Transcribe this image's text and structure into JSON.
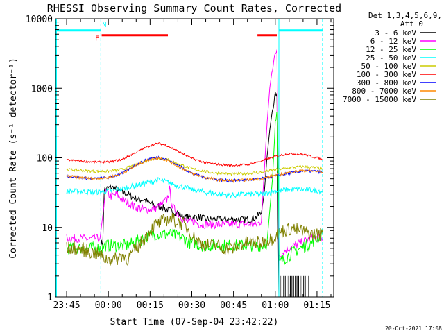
{
  "chart_data": {
    "type": "line",
    "title": "RHESSI Observing Summary Count Rates, Corrected",
    "xlabel": "Start Time (07-Sep-04 23:42:22)",
    "ylabel": "Corrected Count Rate (s⁻¹ detector⁻¹)",
    "yscale": "log",
    "ylim": [
      1,
      10000
    ],
    "xlim_minutes_from_start": [
      -4,
      96
    ],
    "x_units": "minutes after 07-Sep-04 23:42:22",
    "y_ticks": [
      {
        "value": 1,
        "label": "1"
      },
      {
        "value": 10,
        "label": "10"
      },
      {
        "value": 100,
        "label": "100"
      },
      {
        "value": 1000,
        "label": "1000"
      },
      {
        "value": 10000,
        "label": "10000"
      }
    ],
    "x_ticks": [
      {
        "value": 0,
        "label": "23:45"
      },
      {
        "value": 15,
        "label": "00:00"
      },
      {
        "value": 30,
        "label": "00:15"
      },
      {
        "value": 45,
        "label": "00:30"
      },
      {
        "value": 60,
        "label": "00:45"
      },
      {
        "value": 75,
        "label": "01:00"
      },
      {
        "value": 90,
        "label": "01:15"
      }
    ],
    "legend_header": [
      "Det 1,3,4,5,6,9,",
      "Att 0"
    ],
    "legend_position": "right",
    "series": [
      {
        "name": "3 - 6 keV",
        "color": "#000000",
        "points": [
          [
            12.3,
            6
          ],
          [
            13,
            6
          ],
          [
            13.5,
            35
          ],
          [
            16,
            38
          ],
          [
            18,
            35
          ],
          [
            20,
            32
          ],
          [
            22,
            30
          ],
          [
            24,
            27
          ],
          [
            26,
            25
          ],
          [
            28,
            25
          ],
          [
            30,
            22
          ],
          [
            32,
            20
          ],
          [
            34,
            20
          ],
          [
            36,
            18
          ],
          [
            38,
            17
          ],
          [
            40,
            16
          ],
          [
            42,
            14
          ],
          [
            44,
            14
          ],
          [
            46,
            14
          ],
          [
            48,
            14
          ],
          [
            50,
            13
          ],
          [
            52,
            13
          ],
          [
            54,
            13
          ],
          [
            56,
            13
          ],
          [
            58,
            13
          ],
          [
            60,
            13
          ],
          [
            62,
            13
          ],
          [
            64,
            13
          ],
          [
            66,
            13
          ],
          [
            68,
            14
          ],
          [
            70,
            16
          ],
          [
            71,
            30
          ],
          [
            72,
            100
          ],
          [
            73,
            250
          ],
          [
            74,
            500
          ],
          [
            75,
            800
          ],
          [
            75.6,
            850
          ],
          [
            76.3,
            1
          ]
        ]
      },
      {
        "name": "6 - 12 keV",
        "color": "#ff00ff",
        "points": [
          [
            0,
            7
          ],
          [
            4,
            7
          ],
          [
            8,
            6.8
          ],
          [
            12,
            7
          ],
          [
            14,
            32
          ],
          [
            16,
            28
          ],
          [
            18,
            30
          ],
          [
            20,
            25
          ],
          [
            22,
            23
          ],
          [
            24,
            20
          ],
          [
            26,
            19
          ],
          [
            28,
            18
          ],
          [
            30,
            18
          ],
          [
            32,
            19
          ],
          [
            34,
            21
          ],
          [
            36,
            25
          ],
          [
            37,
            35
          ],
          [
            38,
            20
          ],
          [
            40,
            16
          ],
          [
            42,
            13
          ],
          [
            44,
            12
          ],
          [
            46,
            12
          ],
          [
            48,
            11
          ],
          [
            50,
            11
          ],
          [
            52,
            11
          ],
          [
            54,
            11
          ],
          [
            56,
            11
          ],
          [
            58,
            11
          ],
          [
            60,
            11
          ],
          [
            62,
            11
          ],
          [
            64,
            11
          ],
          [
            66,
            11
          ],
          [
            68,
            11
          ],
          [
            70,
            12
          ],
          [
            71,
            60
          ],
          [
            72,
            300
          ],
          [
            73,
            1000
          ],
          [
            74,
            2000
          ],
          [
            75,
            3000
          ],
          [
            75.6,
            3600
          ],
          [
            76.3,
            4
          ],
          [
            78,
            4.5
          ],
          [
            80,
            5
          ],
          [
            82,
            5.5
          ],
          [
            84,
            6
          ],
          [
            86,
            6.5
          ],
          [
            88,
            7
          ],
          [
            90,
            7
          ],
          [
            92,
            7
          ]
        ]
      },
      {
        "name": "12 - 25 keV",
        "color": "#00ff00",
        "points": [
          [
            0,
            5
          ],
          [
            4,
            5
          ],
          [
            8,
            5
          ],
          [
            12,
            5
          ],
          [
            14,
            5.5
          ],
          [
            16,
            5.5
          ],
          [
            18,
            5.5
          ],
          [
            20,
            5.5
          ],
          [
            22,
            5.5
          ],
          [
            24,
            6
          ],
          [
            26,
            6.5
          ],
          [
            28,
            7
          ],
          [
            30,
            7.5
          ],
          [
            32,
            8
          ],
          [
            34,
            8
          ],
          [
            36,
            8
          ],
          [
            38,
            8
          ],
          [
            40,
            7.5
          ],
          [
            42,
            7
          ],
          [
            44,
            6
          ],
          [
            46,
            6
          ],
          [
            48,
            5.5
          ],
          [
            50,
            5.5
          ],
          [
            52,
            5.5
          ],
          [
            54,
            5.5
          ],
          [
            56,
            5.5
          ],
          [
            58,
            5.5
          ],
          [
            60,
            5.5
          ],
          [
            62,
            5.5
          ],
          [
            64,
            5.5
          ],
          [
            66,
            5.5
          ],
          [
            68,
            5.5
          ],
          [
            70,
            5.5
          ],
          [
            72,
            6
          ],
          [
            74,
            50
          ],
          [
            75,
            300
          ],
          [
            75.8,
            450
          ],
          [
            76.4,
            3
          ],
          [
            78,
            3.5
          ],
          [
            80,
            4
          ],
          [
            82,
            4.5
          ],
          [
            84,
            5
          ],
          [
            86,
            5.5
          ],
          [
            88,
            6
          ],
          [
            90,
            7
          ],
          [
            92,
            8
          ]
        ]
      },
      {
        "name": "25 - 50 keV",
        "color": "#00ffff",
        "points": [
          [
            0,
            33
          ],
          [
            5,
            33
          ],
          [
            10,
            32
          ],
          [
            15,
            33
          ],
          [
            20,
            36
          ],
          [
            25,
            40
          ],
          [
            30,
            45
          ],
          [
            33,
            48
          ],
          [
            36,
            45
          ],
          [
            40,
            40
          ],
          [
            45,
            35
          ],
          [
            50,
            32
          ],
          [
            55,
            30
          ],
          [
            60,
            29
          ],
          [
            65,
            30
          ],
          [
            70,
            30
          ],
          [
            75,
            33
          ],
          [
            80,
            35
          ],
          [
            85,
            35
          ],
          [
            90,
            34
          ],
          [
            92,
            33
          ]
        ]
      },
      {
        "name": "50 - 100 keV",
        "color": "#cccc00",
        "points": [
          [
            0,
            68
          ],
          [
            5,
            66
          ],
          [
            10,
            64
          ],
          [
            15,
            64
          ],
          [
            20,
            68
          ],
          [
            25,
            80
          ],
          [
            30,
            95
          ],
          [
            33,
            100
          ],
          [
            36,
            95
          ],
          [
            40,
            82
          ],
          [
            45,
            70
          ],
          [
            50,
            63
          ],
          [
            55,
            60
          ],
          [
            60,
            58
          ],
          [
            65,
            60
          ],
          [
            70,
            62
          ],
          [
            75,
            67
          ],
          [
            80,
            72
          ],
          [
            85,
            75
          ],
          [
            90,
            72
          ],
          [
            92,
            70
          ]
        ]
      },
      {
        "name": "100 - 300 keV",
        "color": "#ff0000",
        "points": [
          [
            0,
            93
          ],
          [
            5,
            90
          ],
          [
            10,
            87
          ],
          [
            15,
            87
          ],
          [
            20,
            95
          ],
          [
            25,
            120
          ],
          [
            30,
            150
          ],
          [
            33,
            162
          ],
          [
            36,
            150
          ],
          [
            40,
            125
          ],
          [
            45,
            98
          ],
          [
            50,
            85
          ],
          [
            55,
            80
          ],
          [
            60,
            78
          ],
          [
            65,
            80
          ],
          [
            70,
            90
          ],
          [
            75,
            105
          ],
          [
            80,
            115
          ],
          [
            85,
            112
          ],
          [
            90,
            100
          ],
          [
            92,
            95
          ]
        ]
      },
      {
        "name": "300 - 800 keV",
        "color": "#0000ff",
        "points": [
          [
            0,
            55
          ],
          [
            5,
            52
          ],
          [
            10,
            50
          ],
          [
            15,
            52
          ],
          [
            20,
            60
          ],
          [
            25,
            80
          ],
          [
            30,
            98
          ],
          [
            33,
            102
          ],
          [
            36,
            95
          ],
          [
            40,
            78
          ],
          [
            45,
            60
          ],
          [
            50,
            52
          ],
          [
            55,
            48
          ],
          [
            60,
            47
          ],
          [
            65,
            48
          ],
          [
            70,
            50
          ],
          [
            75,
            55
          ],
          [
            80,
            60
          ],
          [
            85,
            65
          ],
          [
            90,
            64
          ],
          [
            92,
            62
          ]
        ]
      },
      {
        "name": "800 - 7000 keV",
        "color": "#ff8800",
        "points": [
          [
            0,
            55
          ],
          [
            5,
            52
          ],
          [
            10,
            50
          ],
          [
            15,
            52
          ],
          [
            20,
            60
          ],
          [
            25,
            78
          ],
          [
            30,
            95
          ],
          [
            33,
            100
          ],
          [
            36,
            93
          ],
          [
            40,
            76
          ],
          [
            45,
            60
          ],
          [
            50,
            52
          ],
          [
            55,
            48
          ],
          [
            60,
            47
          ],
          [
            65,
            48
          ],
          [
            70,
            50
          ],
          [
            75,
            56
          ],
          [
            80,
            62
          ],
          [
            85,
            66
          ],
          [
            90,
            64
          ],
          [
            92,
            62
          ]
        ]
      },
      {
        "name": "7000 - 15000 keV",
        "color": "#808000",
        "points": [
          [
            0,
            5
          ],
          [
            4,
            5
          ],
          [
            8,
            4.5
          ],
          [
            12,
            4
          ],
          [
            14,
            3.5
          ],
          [
            16,
            3.5
          ],
          [
            18,
            3.5
          ],
          [
            20,
            4
          ],
          [
            22,
            3.5
          ],
          [
            24,
            4.5
          ],
          [
            26,
            5.5
          ],
          [
            28,
            7
          ],
          [
            30,
            9
          ],
          [
            32,
            11
          ],
          [
            34,
            12
          ],
          [
            36,
            13
          ],
          [
            38,
            13
          ],
          [
            40,
            12
          ],
          [
            42,
            11
          ],
          [
            44,
            9
          ],
          [
            46,
            7
          ],
          [
            48,
            6
          ],
          [
            50,
            5.5
          ],
          [
            52,
            5.5
          ],
          [
            54,
            5.5
          ],
          [
            56,
            5
          ],
          [
            58,
            5
          ],
          [
            60,
            5
          ],
          [
            62,
            5.5
          ],
          [
            64,
            6
          ],
          [
            66,
            6
          ],
          [
            68,
            6
          ],
          [
            70,
            6
          ],
          [
            72,
            6.5
          ],
          [
            74,
            7
          ],
          [
            76,
            8
          ],
          [
            78,
            9
          ],
          [
            80,
            9.5
          ],
          [
            82,
            9.5
          ],
          [
            84,
            9
          ],
          [
            86,
            8.5
          ],
          [
            88,
            8
          ],
          [
            90,
            8
          ],
          [
            92,
            8
          ]
        ]
      }
    ],
    "annotations": [
      {
        "label": "F",
        "color": "#ff0000"
      },
      {
        "label": "N",
        "color": "#00ffff"
      }
    ],
    "footer_timestamp": "20-Oct-2021 17:08"
  }
}
